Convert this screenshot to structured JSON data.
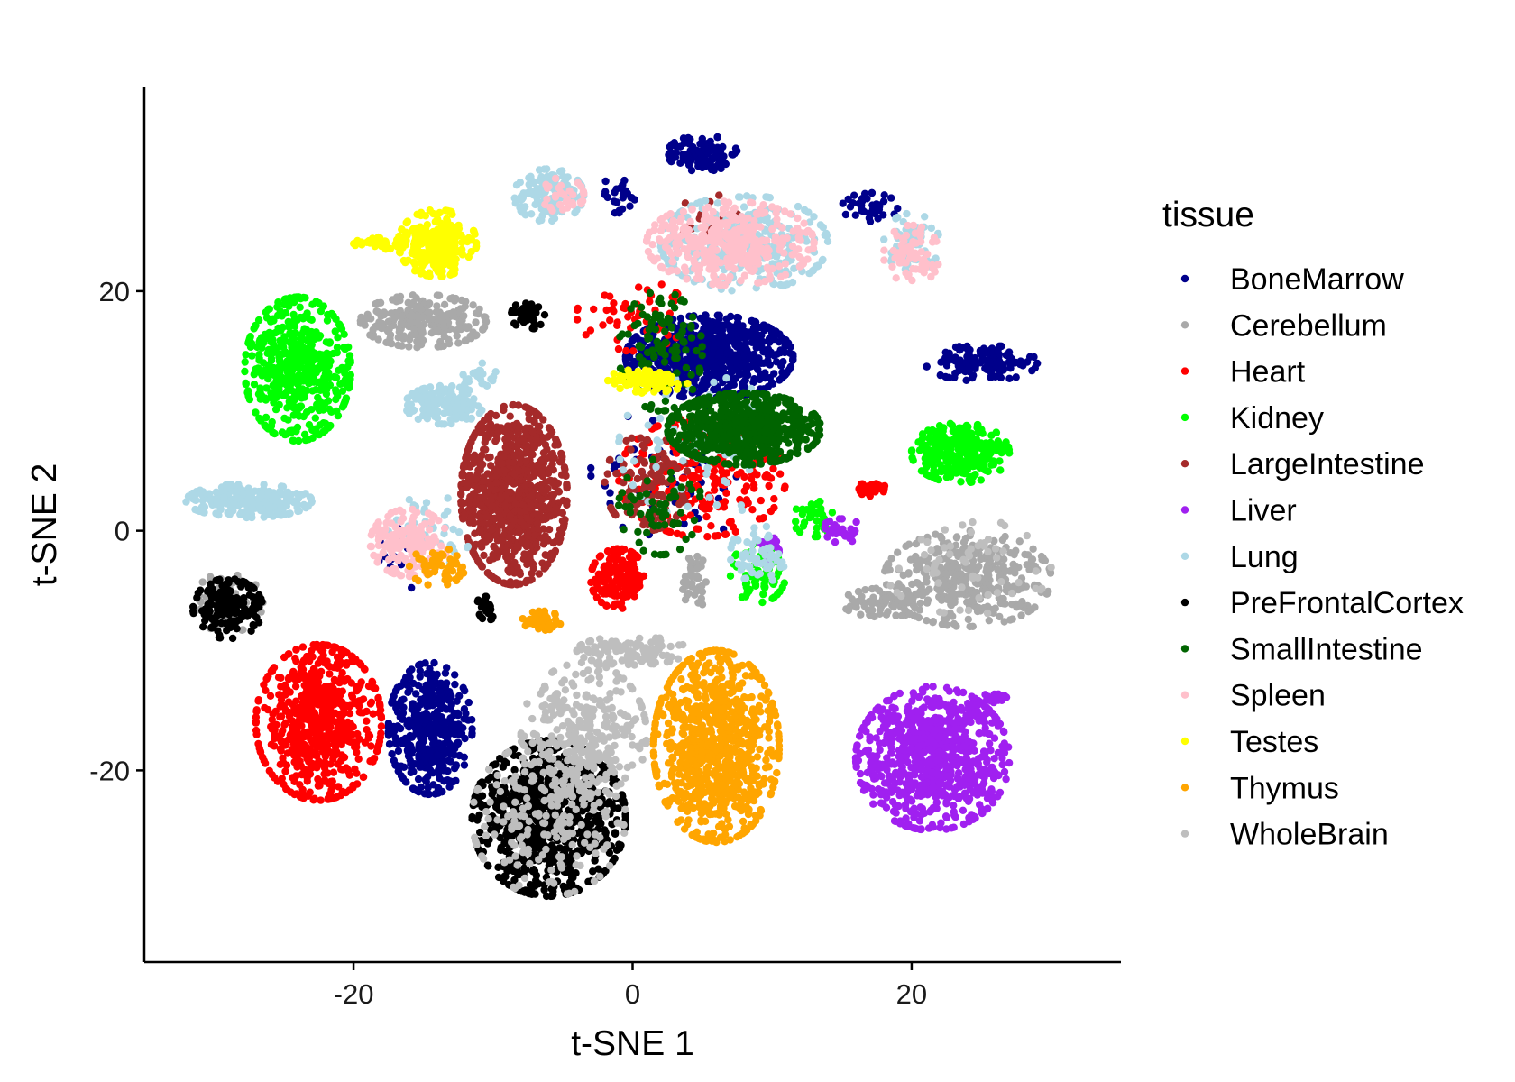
{
  "chart_data": {
    "type": "scatter",
    "title": "",
    "xlabel": "t-SNE 1",
    "ylabel": "t-SNE 2",
    "xlim": [
      -35,
      35
    ],
    "ylim": [
      -36,
      37
    ],
    "xticks": [
      -20,
      0,
      20
    ],
    "yticks": [
      -20,
      0,
      20
    ],
    "xtick_labels": [
      "-20",
      "0",
      "20"
    ],
    "ytick_labels": [
      "-20",
      "0",
      "20"
    ],
    "grid": false,
    "legend": {
      "title": "tissue",
      "position": "right"
    },
    "series": [
      {
        "name": "BoneMarrow",
        "color": "#00008B",
        "clusters": [
          {
            "cx": 5.5,
            "cy": 14.5,
            "rx": 6,
            "ry": 3.5,
            "n": 700
          },
          {
            "cx": 25,
            "cy": 14,
            "rx": 4,
            "ry": 1.5,
            "n": 120
          },
          {
            "cx": 5,
            "cy": 31.5,
            "rx": 2.5,
            "ry": 1.5,
            "n": 110
          },
          {
            "cx": -14.5,
            "cy": -16.5,
            "rx": 3,
            "ry": 5.5,
            "n": 420
          },
          {
            "cx": 17,
            "cy": 27,
            "rx": 2,
            "ry": 1.2,
            "n": 40
          },
          {
            "cx": -1,
            "cy": 28,
            "rx": 1.5,
            "ry": 1.5,
            "n": 25
          },
          {
            "cx": 3,
            "cy": 5,
            "rx": 6,
            "ry": 6,
            "n": 60
          },
          {
            "cx": -17,
            "cy": -2,
            "rx": 3,
            "ry": 3,
            "n": 15
          }
        ]
      },
      {
        "name": "Cerebellum",
        "color": "#A9A9A9",
        "clusters": [
          {
            "cx": -15,
            "cy": 17.5,
            "rx": 4.5,
            "ry": 2.2,
            "n": 240
          },
          {
            "cx": 24,
            "cy": -4,
            "rx": 6,
            "ry": 4,
            "n": 380
          },
          {
            "cx": 18,
            "cy": -6,
            "rx": 3,
            "ry": 1.2,
            "n": 60
          },
          {
            "cx": -29,
            "cy": -6,
            "rx": 2.5,
            "ry": 2.5,
            "n": 80
          },
          {
            "cx": 4.5,
            "cy": -4,
            "rx": 1,
            "ry": 2.5,
            "n": 40
          }
        ]
      },
      {
        "name": "Heart",
        "color": "#FF0000",
        "clusters": [
          {
            "cx": -22.5,
            "cy": -16,
            "rx": 4.5,
            "ry": 6.5,
            "n": 650
          },
          {
            "cx": -1,
            "cy": -4,
            "rx": 2,
            "ry": 2.5,
            "n": 160
          },
          {
            "cx": 5,
            "cy": 4.5,
            "rx": 6,
            "ry": 5,
            "n": 220
          },
          {
            "cx": 17,
            "cy": 3.5,
            "rx": 1.2,
            "ry": 0.6,
            "n": 35
          },
          {
            "cx": 0,
            "cy": 18,
            "rx": 4,
            "ry": 3,
            "n": 50
          }
        ]
      },
      {
        "name": "Kidney",
        "color": "#00FF00",
        "clusters": [
          {
            "cx": -24,
            "cy": 13.5,
            "rx": 3.8,
            "ry": 6,
            "n": 520
          },
          {
            "cx": 23.5,
            "cy": 6.5,
            "rx": 3.5,
            "ry": 2.5,
            "n": 260
          },
          {
            "cx": 9,
            "cy": -3.5,
            "rx": 2,
            "ry": 2.5,
            "n": 70
          },
          {
            "cx": 13,
            "cy": 1,
            "rx": 1.5,
            "ry": 1.5,
            "n": 40
          }
        ]
      },
      {
        "name": "LargeIntestine",
        "color": "#A52A2A",
        "clusters": [
          {
            "cx": -8.5,
            "cy": 3,
            "rx": 3.8,
            "ry": 7.5,
            "n": 900
          },
          {
            "cx": 1,
            "cy": 4,
            "rx": 3,
            "ry": 4,
            "n": 120
          },
          {
            "cx": 6,
            "cy": 26,
            "rx": 3,
            "ry": 2,
            "n": 20
          }
        ]
      },
      {
        "name": "Liver",
        "color": "#A020F0",
        "clusters": [
          {
            "cx": 21.5,
            "cy": -19,
            "rx": 5.5,
            "ry": 6,
            "n": 800
          },
          {
            "cx": 15,
            "cy": 0,
            "rx": 1.5,
            "ry": 1,
            "n": 30
          },
          {
            "cx": 10,
            "cy": -1.5,
            "rx": 1,
            "ry": 1,
            "n": 15
          },
          {
            "cx": 26,
            "cy": -14,
            "rx": 1,
            "ry": 0.5,
            "n": 15
          }
        ]
      },
      {
        "name": "Lung",
        "color": "#ADD8E6",
        "clusters": [
          {
            "cx": -27.5,
            "cy": 2.5,
            "rx": 4.5,
            "ry": 1.4,
            "n": 260
          },
          {
            "cx": -13.5,
            "cy": 10.5,
            "rx": 2.8,
            "ry": 1.6,
            "n": 170
          },
          {
            "cx": -6,
            "cy": 28,
            "rx": 2.5,
            "ry": 2.2,
            "n": 150
          },
          {
            "cx": 8,
            "cy": 24,
            "rx": 6,
            "ry": 4,
            "n": 300
          },
          {
            "cx": 20,
            "cy": 24,
            "rx": 2,
            "ry": 2.5,
            "n": 60
          },
          {
            "cx": 9,
            "cy": -2,
            "rx": 2,
            "ry": 2.5,
            "n": 60
          },
          {
            "cx": -14.5,
            "cy": 0,
            "rx": 3,
            "ry": 3,
            "n": 40
          },
          {
            "cx": 5,
            "cy": 7,
            "rx": 6,
            "ry": 6,
            "n": 70
          },
          {
            "cx": -11,
            "cy": 13,
            "rx": 2,
            "ry": 1,
            "n": 25
          }
        ]
      },
      {
        "name": "PreFrontalCortex",
        "color": "#000000",
        "clusters": [
          {
            "cx": -6,
            "cy": -24,
            "rx": 5.5,
            "ry": 6.5,
            "n": 800
          },
          {
            "cx": -29,
            "cy": -6.5,
            "rx": 2.5,
            "ry": 2.5,
            "n": 160
          },
          {
            "cx": -7.5,
            "cy": 18,
            "rx": 1.2,
            "ry": 1.2,
            "n": 50
          },
          {
            "cx": -10.5,
            "cy": -6.5,
            "rx": 0.8,
            "ry": 1,
            "n": 25
          }
        ]
      },
      {
        "name": "SmallIntestine",
        "color": "#006400",
        "clusters": [
          {
            "cx": 8,
            "cy": 8.5,
            "rx": 5.5,
            "ry": 3,
            "n": 650
          },
          {
            "cx": 2,
            "cy": 15,
            "rx": 3,
            "ry": 5,
            "n": 120
          },
          {
            "cx": 2,
            "cy": 2,
            "rx": 3,
            "ry": 4,
            "n": 60
          }
        ]
      },
      {
        "name": "Spleen",
        "color": "#FFC0CB",
        "clusters": [
          {
            "cx": 7,
            "cy": 24,
            "rx": 6,
            "ry": 3.5,
            "n": 380
          },
          {
            "cx": -16,
            "cy": -1,
            "rx": 2.8,
            "ry": 2.8,
            "n": 170
          },
          {
            "cx": 20,
            "cy": 23,
            "rx": 2,
            "ry": 2.5,
            "n": 70
          },
          {
            "cx": -5,
            "cy": 28,
            "rx": 1.5,
            "ry": 1.5,
            "n": 30
          }
        ]
      },
      {
        "name": "Testes",
        "color": "#FFFF00",
        "clusters": [
          {
            "cx": -14,
            "cy": 24,
            "rx": 2.8,
            "ry": 2.8,
            "n": 260
          },
          {
            "cx": -18,
            "cy": 24,
            "rx": 2,
            "ry": 0.5,
            "n": 40
          },
          {
            "cx": 1,
            "cy": 12.5,
            "rx": 3,
            "ry": 1,
            "n": 90
          }
        ]
      },
      {
        "name": "Thymus",
        "color": "#FFA500",
        "clusters": [
          {
            "cx": 6,
            "cy": -18,
            "rx": 4.5,
            "ry": 8,
            "n": 850
          },
          {
            "cx": -6.5,
            "cy": -7.5,
            "rx": 1.4,
            "ry": 0.8,
            "n": 50
          },
          {
            "cx": -14,
            "cy": -3,
            "rx": 2,
            "ry": 1.6,
            "n": 50
          }
        ]
      },
      {
        "name": "WholeBrain",
        "color": "#BEBEBE",
        "clusters": [
          {
            "cx": -3.5,
            "cy": -17,
            "rx": 4.5,
            "ry": 6,
            "n": 320
          },
          {
            "cx": 0,
            "cy": -10,
            "rx": 4,
            "ry": 1.2,
            "n": 110
          },
          {
            "cx": -6,
            "cy": -24,
            "rx": 5.5,
            "ry": 6.5,
            "n": 180
          },
          {
            "cx": 24,
            "cy": -3,
            "rx": 6,
            "ry": 4,
            "n": 60
          }
        ]
      }
    ]
  }
}
